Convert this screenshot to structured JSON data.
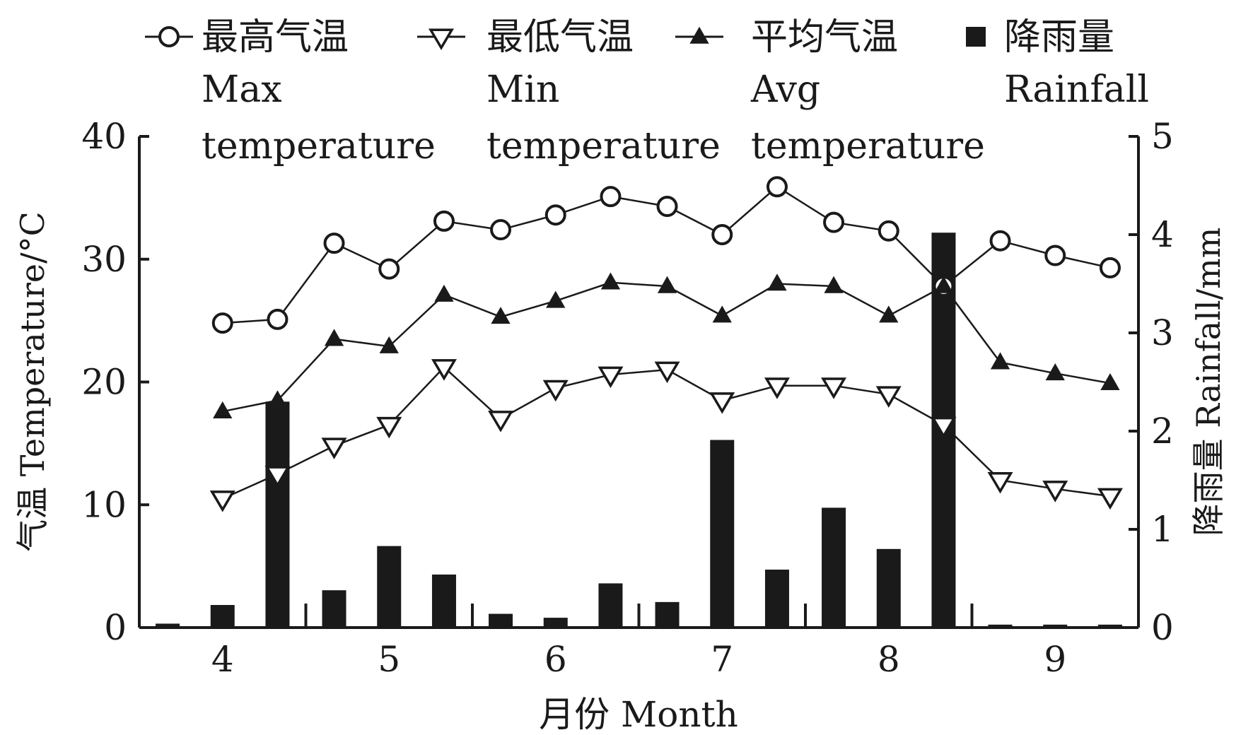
{
  "chart_data": {
    "type": "line",
    "x_ticks": [
      "4",
      "5",
      "6",
      "7",
      "8",
      "9"
    ],
    "xlabel": "月份 Month",
    "ylabel_left": "气温 Temperature/°C",
    "ylabel_right": "降雨量 Rainfall/mm",
    "ylim_left": [
      0,
      40
    ],
    "ylim_right": [
      0,
      5
    ],
    "yticks_left": [
      "0",
      "10",
      "20",
      "30",
      "40"
    ],
    "yticks_right": [
      "0",
      "1",
      "2",
      "3",
      "4",
      "5"
    ],
    "grid": false,
    "legend_position": "top",
    "x_domain": [
      3.5,
      9.5
    ],
    "x": [
      4.0,
      4.33,
      4.67,
      5.0,
      5.33,
      5.67,
      6.0,
      6.33,
      6.67,
      7.0,
      7.33,
      7.67,
      8.0,
      8.33,
      8.67,
      9.0,
      9.33
    ],
    "series": [
      {
        "name_cn": "最高气温",
        "name_en": [
          "Max",
          "temperature"
        ],
        "marker": "circle-open",
        "axis": "left",
        "values": [
          24.8,
          25.1,
          31.3,
          29.2,
          33.1,
          32.4,
          33.6,
          35.1,
          34.3,
          32.0,
          35.9,
          33.0,
          32.3,
          27.8,
          31.5,
          30.3,
          29.3
        ]
      },
      {
        "name_cn": "最低气温",
        "name_en": [
          "Min",
          "temperature"
        ],
        "marker": "triangle-down-open",
        "axis": "left",
        "values": [
          10.5,
          12.5,
          14.8,
          16.5,
          21.2,
          17.0,
          19.5,
          20.6,
          21.0,
          18.5,
          19.7,
          19.7,
          19.0,
          16.5,
          12.0,
          11.3,
          10.7
        ]
      },
      {
        "name_cn": "平均气温",
        "name_en": [
          "Avg",
          "temperature"
        ],
        "marker": "triangle-up-filled",
        "axis": "left",
        "values": [
          17.6,
          18.5,
          23.5,
          22.9,
          27.1,
          25.3,
          26.6,
          28.1,
          27.8,
          25.4,
          28.0,
          27.8,
          25.4,
          27.8,
          21.6,
          20.7,
          19.9
        ]
      }
    ],
    "rainfall": {
      "name_cn": "降雨量",
      "name_en": [
        "Rainfall"
      ],
      "marker": "square-filled",
      "axis": "right",
      "x": [
        3.67,
        4.0,
        4.33,
        4.67,
        5.0,
        5.33,
        5.67,
        6.0,
        6.33,
        6.67,
        7.0,
        7.33,
        7.67,
        8.0,
        8.33,
        8.67,
        9.0,
        9.33
      ],
      "values": [
        0.04,
        0.23,
        2.3,
        0.38,
        0.83,
        0.54,
        0.14,
        0.1,
        0.45,
        0.26,
        1.91,
        0.59,
        1.22,
        0.8,
        4.02,
        0.03,
        0.03,
        0.03
      ]
    },
    "colors": {
      "ink": "#1a1a1a",
      "background": "#ffffff"
    }
  }
}
